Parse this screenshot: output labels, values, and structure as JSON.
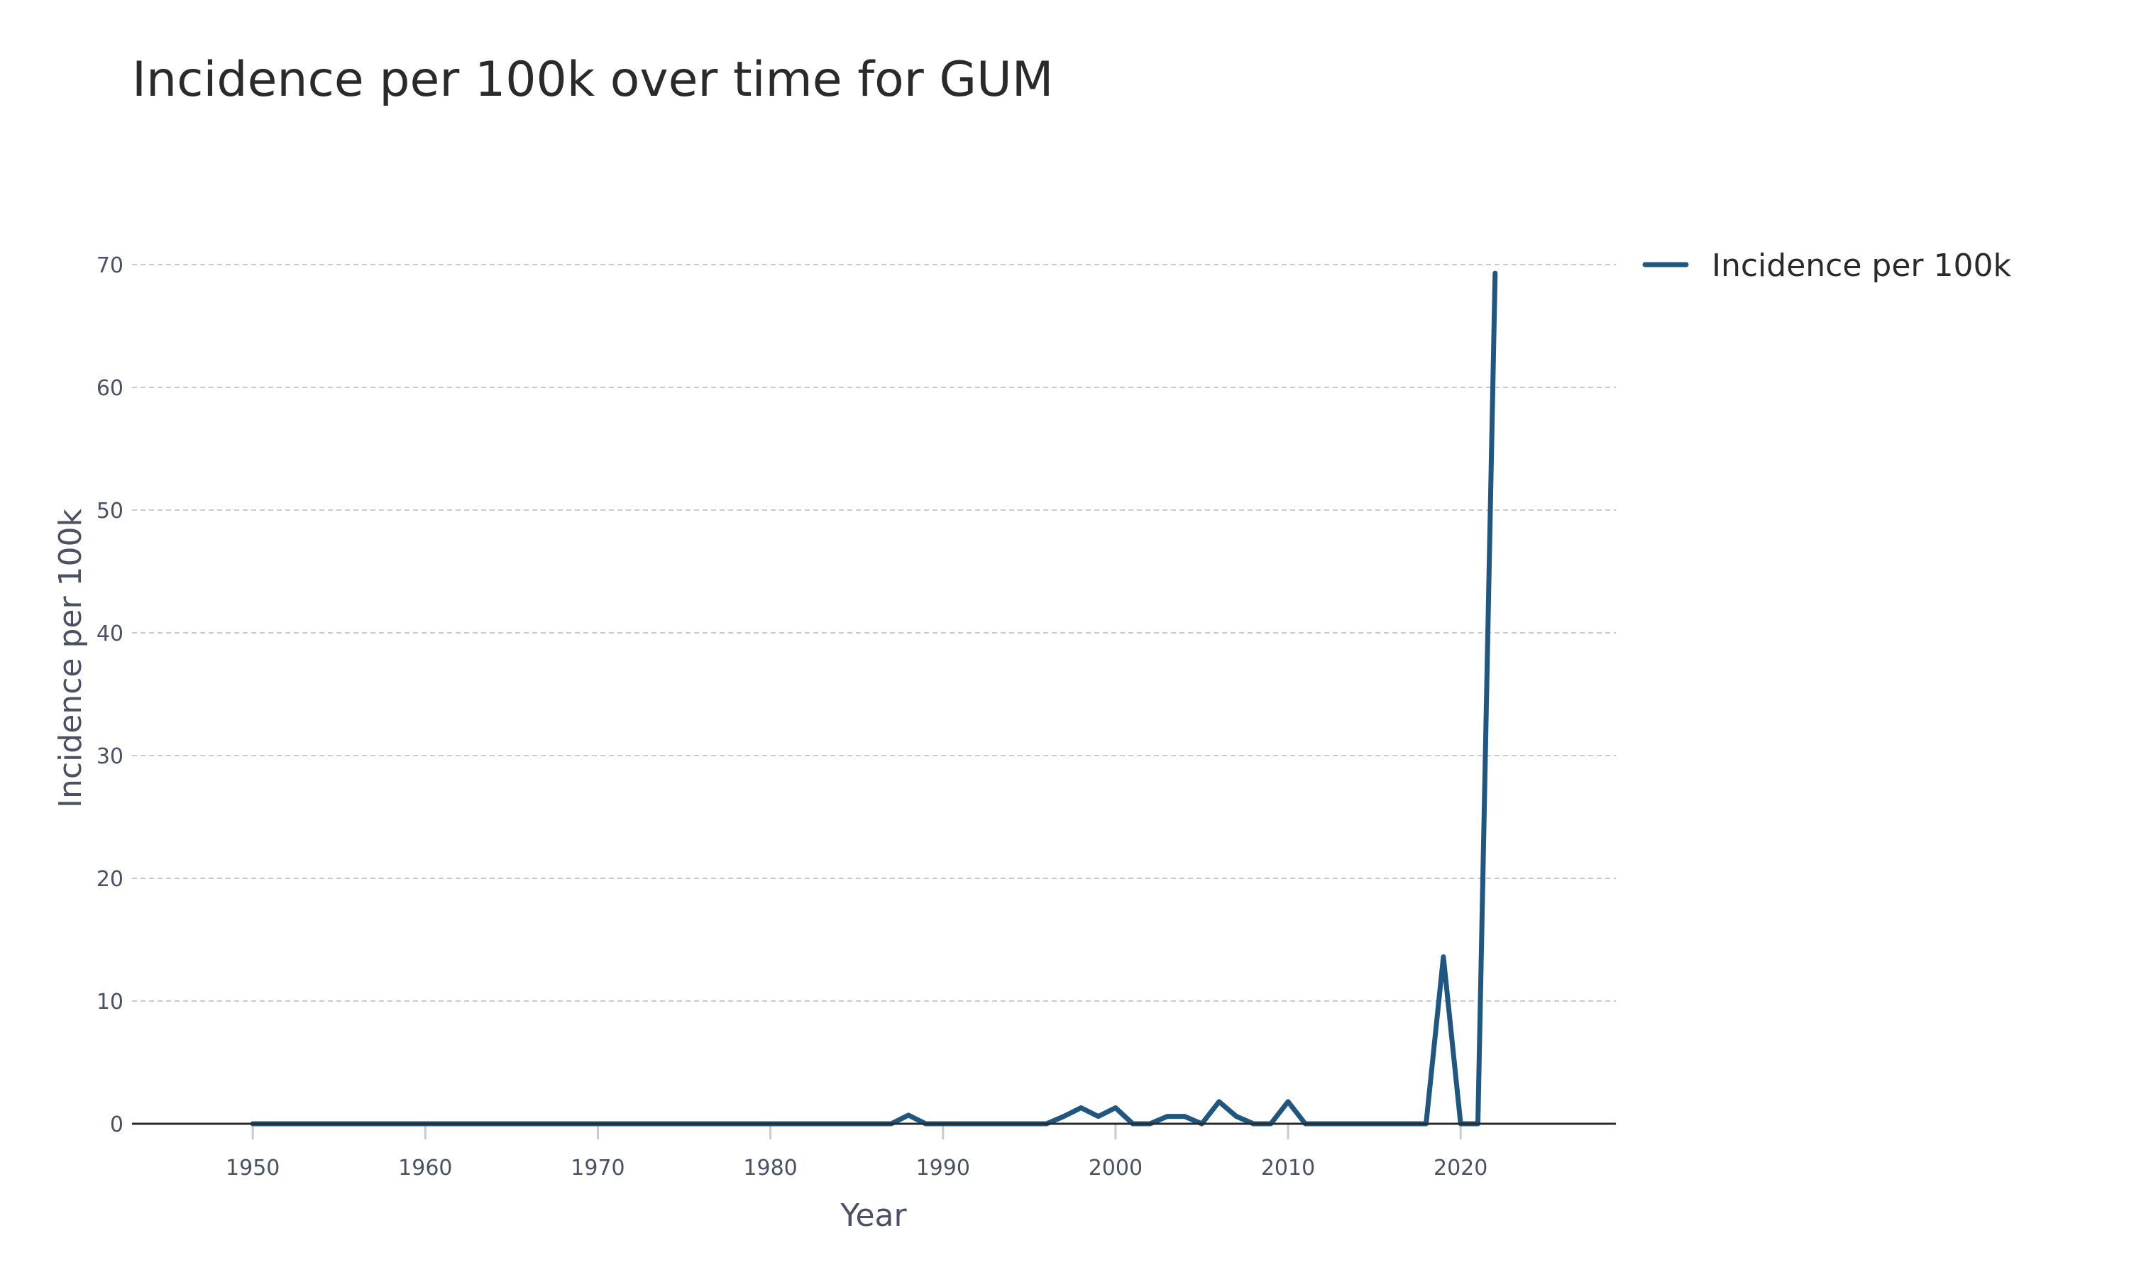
{
  "title": "Incidence per 100k over time for GUM",
  "chart_data": {
    "type": "line",
    "title": "Incidence per 100k over time for GUM",
    "xlabel": "Year",
    "ylabel": "Incidence per 100k",
    "xlim": [
      1943,
      2029
    ],
    "ylim": [
      0,
      70
    ],
    "x_ticks": [
      1950,
      1960,
      1970,
      1980,
      1990,
      2000,
      2010,
      2020
    ],
    "y_ticks": [
      0,
      10,
      20,
      30,
      40,
      50,
      60,
      70
    ],
    "grid": true,
    "legend_position": "top-right",
    "series": [
      {
        "name": "Incidence per 100k",
        "color": "#1f5781",
        "x": [
          1950,
          1951,
          1952,
          1953,
          1954,
          1955,
          1956,
          1957,
          1958,
          1959,
          1960,
          1961,
          1962,
          1963,
          1964,
          1965,
          1966,
          1967,
          1968,
          1969,
          1970,
          1971,
          1972,
          1973,
          1974,
          1975,
          1976,
          1977,
          1978,
          1979,
          1980,
          1981,
          1982,
          1983,
          1984,
          1985,
          1986,
          1987,
          1988,
          1989,
          1990,
          1991,
          1992,
          1993,
          1994,
          1995,
          1996,
          1997,
          1998,
          1999,
          2000,
          2001,
          2002,
          2003,
          2004,
          2005,
          2006,
          2007,
          2008,
          2009,
          2010,
          2011,
          2012,
          2013,
          2014,
          2015,
          2016,
          2017,
          2018,
          2019,
          2020,
          2021,
          2022
        ],
        "values": [
          0,
          0,
          0,
          0,
          0,
          0,
          0,
          0,
          0,
          0,
          0,
          0,
          0,
          0,
          0,
          0,
          0,
          0,
          0,
          0,
          0,
          0,
          0,
          0,
          0,
          0,
          0,
          0,
          0,
          0,
          0,
          0,
          0,
          0,
          0,
          0,
          0,
          0,
          0.7,
          0,
          0,
          0,
          0,
          0,
          0,
          0,
          0,
          0.6,
          1.3,
          0.6,
          1.3,
          0,
          0,
          0.6,
          0.6,
          0,
          1.8,
          0.6,
          0,
          0,
          1.8,
          0,
          0,
          0,
          0,
          0,
          0,
          0,
          0,
          13.6,
          0,
          0,
          69.3
        ]
      }
    ]
  }
}
